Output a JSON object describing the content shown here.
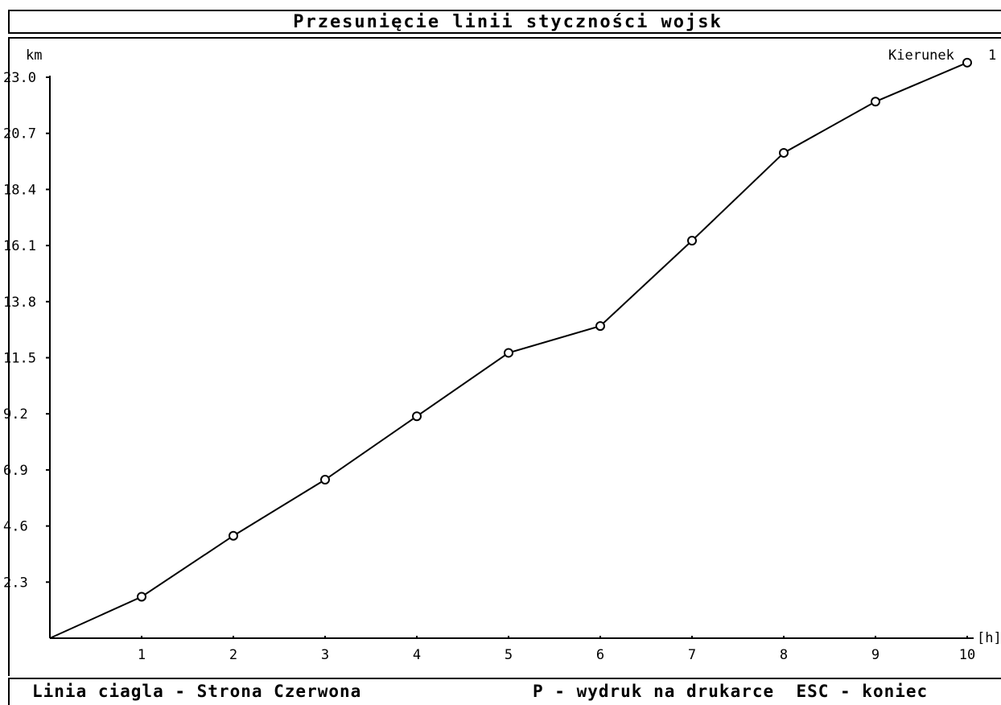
{
  "app": {
    "title": "Przesunięcie linii styczności wojsk",
    "direction_label": "Kierunek",
    "direction_value": "1"
  },
  "footer": {
    "legend_text": "Linia ciagla - Strona Czerwona",
    "print_hint": "P - wydruk na drukarce",
    "exit_hint": "ESC - koniec"
  },
  "chart_data": {
    "type": "line",
    "title": "Przesunięcie linii styczności wojsk",
    "ylabel": "km",
    "xlabel": "[h]",
    "ylim": [
      0,
      23.0
    ],
    "xlim": [
      0,
      10
    ],
    "yticks": [
      "2.3",
      "4.6",
      "6.9",
      "9.2",
      "11.5",
      "13.8",
      "16.1",
      "18.4",
      "20.7",
      "23.0"
    ],
    "xticks": [
      "1",
      "2",
      "3",
      "4",
      "5",
      "6",
      "7",
      "8",
      "9",
      "10"
    ],
    "grid": false,
    "marker": "circle",
    "series": [
      {
        "x": [
          0,
          1,
          2,
          3,
          4,
          5,
          6,
          7,
          8,
          9,
          10
        ],
        "y": [
          0,
          1.7,
          4.2,
          6.5,
          9.1,
          11.7,
          12.8,
          16.3,
          19.9,
          22.0,
          23.6
        ]
      }
    ]
  }
}
